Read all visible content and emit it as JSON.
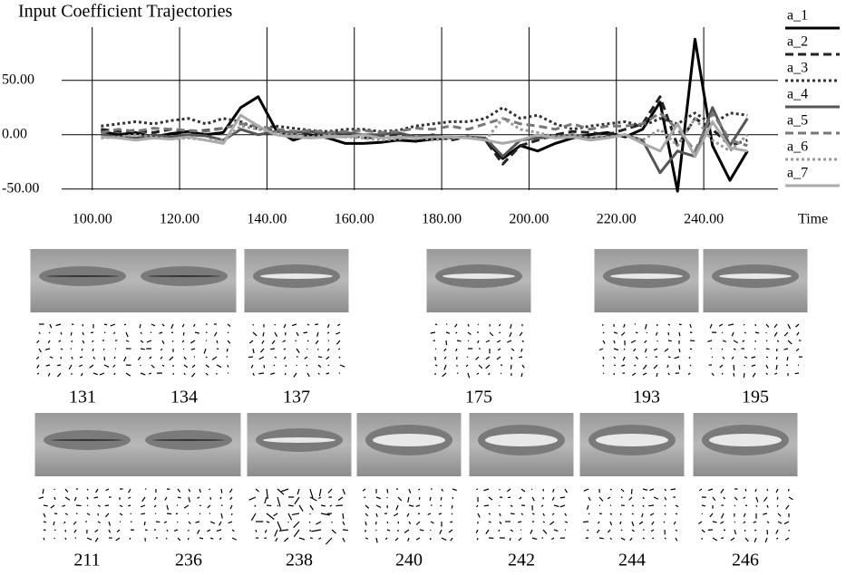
{
  "chart_data": {
    "type": "line",
    "title": "Input Coefficient Trajectories",
    "x_label": "Time",
    "x": [
      102,
      106,
      110,
      114,
      118,
      122,
      126,
      130,
      134,
      138,
      142,
      146,
      150,
      154,
      158,
      162,
      166,
      170,
      174,
      178,
      182,
      186,
      190,
      194,
      198,
      202,
      206,
      210,
      214,
      218,
      222,
      226,
      230,
      234,
      238,
      242,
      246,
      250
    ],
    "series": [
      {
        "name": "a_1",
        "color": "#000000",
        "style": "solid",
        "values": [
          3,
          0,
          2,
          -2,
          1,
          3,
          0,
          2,
          25,
          35,
          5,
          -5,
          0,
          -3,
          -8,
          -8,
          -7,
          -5,
          -6,
          -4,
          -3,
          -2,
          -5,
          -22,
          -10,
          -15,
          -8,
          -3,
          0,
          2,
          -2,
          5,
          30,
          -52,
          88,
          -10,
          -42,
          -15
        ]
      },
      {
        "name": "a_2",
        "color": "#222222",
        "style": "dashed",
        "values": [
          5,
          3,
          4,
          2,
          5,
          3,
          4,
          6,
          10,
          8,
          3,
          2,
          0,
          1,
          2,
          -3,
          -2,
          0,
          -3,
          0,
          -5,
          -2,
          -5,
          -27,
          -10,
          -5,
          0,
          3,
          2,
          0,
          5,
          10,
          35,
          -10,
          15,
          5,
          -10,
          -5
        ]
      },
      {
        "name": "a_3",
        "color": "#333333",
        "style": "dotted",
        "values": [
          8,
          10,
          12,
          10,
          13,
          15,
          10,
          15,
          12,
          5,
          8,
          6,
          4,
          3,
          5,
          5,
          3,
          4,
          8,
          10,
          12,
          12,
          15,
          25,
          15,
          18,
          10,
          5,
          8,
          10,
          12,
          8,
          15,
          10,
          20,
          10,
          20,
          18
        ]
      },
      {
        "name": "a_4",
        "color": "#555555",
        "style": "solid",
        "values": [
          0,
          -2,
          -3,
          0,
          -2,
          0,
          -1,
          -5,
          5,
          0,
          3,
          2,
          3,
          1,
          2,
          0,
          0,
          2,
          -2,
          -1,
          -3,
          -2,
          -3,
          -20,
          -5,
          -3,
          -2,
          0,
          -3,
          -2,
          0,
          -5,
          -35,
          -15,
          -20,
          25,
          -10,
          15
        ]
      },
      {
        "name": "a_5",
        "color": "#777777",
        "style": "dashed",
        "values": [
          2,
          5,
          3,
          6,
          5,
          4,
          3,
          6,
          10,
          8,
          5,
          3,
          4,
          2,
          3,
          4,
          2,
          3,
          6,
          5,
          8,
          5,
          10,
          15,
          10,
          8,
          5,
          10,
          5,
          8,
          8,
          10,
          20,
          5,
          -15,
          20,
          -5,
          -10
        ]
      },
      {
        "name": "a_6",
        "color": "#999999",
        "style": "dotted",
        "values": [
          -3,
          -2,
          0,
          -2,
          -4,
          -3,
          -5,
          -5,
          8,
          5,
          2,
          0,
          -2,
          0,
          -2,
          -3,
          -5,
          -4,
          -2,
          -5,
          -3,
          -2,
          -5,
          15,
          5,
          2,
          -2,
          0,
          -3,
          -2,
          0,
          -5,
          5,
          -10,
          15,
          -5,
          -15,
          0
        ]
      },
      {
        "name": "a_7",
        "color": "#aaaaaa",
        "style": "solid",
        "values": [
          -2,
          -3,
          -5,
          -3,
          -4,
          -2,
          -5,
          -8,
          18,
          8,
          0,
          -2,
          -3,
          -2,
          -2,
          0,
          -3,
          -2,
          -3,
          -2,
          -2,
          -3,
          -5,
          -8,
          -5,
          0,
          -3,
          -2,
          -5,
          -3,
          0,
          -8,
          -15,
          10,
          -20,
          12,
          -12,
          -15
        ]
      }
    ],
    "xlim": [
      93,
      257
    ],
    "ylim": [
      -51,
      99
    ],
    "xticks": [
      {
        "value": 100,
        "label": "100.00"
      },
      {
        "value": 120,
        "label": "120.00"
      },
      {
        "value": 140,
        "label": "140.00"
      },
      {
        "value": 160,
        "label": "160.00"
      },
      {
        "value": 180,
        "label": "180.00"
      },
      {
        "value": 200,
        "label": "200.00"
      },
      {
        "value": 220,
        "label": "220.00"
      },
      {
        "value": 240,
        "label": "240.00"
      }
    ],
    "yticks": [
      {
        "value": -50,
        "label": "-50.00"
      },
      {
        "value": 0,
        "label": "0.00"
      },
      {
        "value": 50,
        "label": "50.00"
      }
    ],
    "grid": true,
    "legend": "right"
  },
  "frame_rows": [
    [
      131,
      134,
      137,
      175,
      193,
      195
    ],
    [
      211,
      236,
      238,
      240,
      242,
      244,
      246
    ]
  ]
}
